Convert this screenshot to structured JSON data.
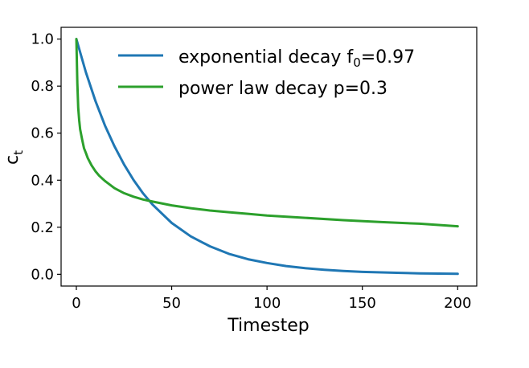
{
  "chart_data": {
    "type": "line",
    "title": "",
    "xlabel": "Timestep",
    "ylabel_main": "c",
    "ylabel_sub": "t",
    "xlim": [
      -8,
      210
    ],
    "ylim": [
      -0.05,
      1.05
    ],
    "xticks": [
      0,
      50,
      100,
      150,
      200
    ],
    "xtick_labels": [
      "0",
      "50",
      "100",
      "150",
      "200"
    ],
    "yticks": [
      0.0,
      0.2,
      0.4,
      0.6,
      0.8,
      1.0
    ],
    "ytick_labels": [
      "0.0",
      "0.2",
      "0.4",
      "0.6",
      "0.8",
      "1.0"
    ],
    "grid": false,
    "legend_position": "top-right",
    "series": [
      {
        "name_main": "exponential decay f",
        "name_sub": "0",
        "name_tail": "=0.97",
        "color": "#1f77b4",
        "x": [
          0,
          5,
          10,
          15,
          20,
          25,
          30,
          35,
          40,
          50,
          60,
          70,
          80,
          90,
          100,
          110,
          120,
          130,
          140,
          150,
          160,
          170,
          180,
          190,
          200
        ],
        "y": [
          1.0,
          0.859,
          0.737,
          0.633,
          0.544,
          0.467,
          0.401,
          0.344,
          0.296,
          0.218,
          0.161,
          0.119,
          0.087,
          0.064,
          0.048,
          0.035,
          0.026,
          0.019,
          0.014,
          0.01,
          0.008,
          0.006,
          0.004,
          0.003,
          0.002
        ]
      },
      {
        "name_main": "power law decay p=0.3",
        "name_sub": "",
        "name_tail": "",
        "color": "#2ca02c",
        "x": [
          0,
          0.5,
          1,
          1.5,
          2,
          3,
          4,
          5,
          6,
          8,
          10,
          12,
          15,
          20,
          25,
          30,
          35,
          40,
          50,
          60,
          70,
          80,
          90,
          100,
          120,
          140,
          160,
          180,
          200
        ],
        "y": [
          1.0,
          0.812,
          0.707,
          0.655,
          0.616,
          0.574,
          0.536,
          0.516,
          0.494,
          0.463,
          0.438,
          0.419,
          0.397,
          0.366,
          0.345,
          0.33,
          0.318,
          0.309,
          0.293,
          0.281,
          0.271,
          0.264,
          0.257,
          0.25,
          0.24,
          0.23,
          0.222,
          0.215,
          0.204
        ]
      }
    ]
  }
}
